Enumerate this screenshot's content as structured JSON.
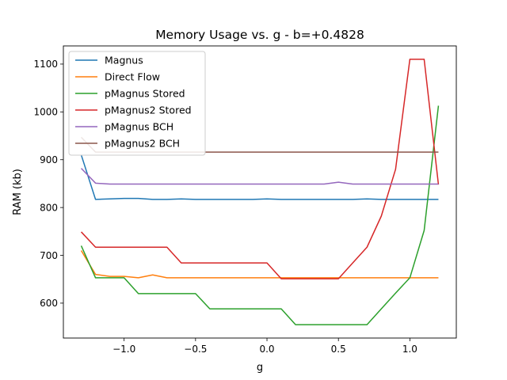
{
  "chart_data": {
    "type": "line",
    "title": "Memory Usage vs. g - b=+0.4828",
    "xlabel": "g",
    "ylabel": "RAM (kb)",
    "xlim": [
      -1.425,
      1.325
    ],
    "ylim": [
      527,
      1138
    ],
    "xticks": [
      -1.0,
      -0.5,
      0.0,
      0.5,
      1.0
    ],
    "xtick_labels": [
      "−1.0",
      "−0.5",
      "0.0",
      "0.5",
      "1.0"
    ],
    "yticks": [
      600,
      700,
      800,
      900,
      1000,
      1100
    ],
    "ytick_labels": [
      "600",
      "700",
      "800",
      "900",
      "1000",
      "1100"
    ],
    "grid": false,
    "legend_position": "top-left",
    "x": [
      -1.3,
      -1.2,
      -1.1,
      -1.0,
      -0.9,
      -0.8,
      -0.7,
      -0.6,
      -0.5,
      -0.4,
      -0.3,
      -0.2,
      -0.1,
      0.0,
      0.1,
      0.2,
      0.3,
      0.4,
      0.5,
      0.6,
      0.7,
      0.8,
      0.9,
      1.0,
      1.1,
      1.2
    ],
    "series": [
      {
        "name": "Magnus",
        "color": "#1f77b4",
        "values": [
          910,
          817,
          818,
          819,
          819,
          817,
          817,
          818,
          817,
          817,
          817,
          817,
          817,
          818,
          817,
          817,
          817,
          817,
          817,
          817,
          818,
          817,
          817,
          817,
          817,
          817
        ]
      },
      {
        "name": "Direct Flow",
        "color": "#ff7f0e",
        "values": [
          710,
          660,
          656,
          656,
          653,
          659,
          653,
          653,
          653,
          653,
          653,
          653,
          653,
          653,
          653,
          653,
          653,
          653,
          653,
          653,
          653,
          653,
          653,
          653,
          653,
          653
        ]
      },
      {
        "name": "pMagnus Stored",
        "color": "#2ca02c",
        "values": [
          720,
          653,
          653,
          653,
          620,
          620,
          620,
          620,
          620,
          588,
          588,
          588,
          588,
          588,
          588,
          555,
          555,
          555,
          555,
          555,
          555,
          588,
          621,
          653,
          752,
          1013
        ]
      },
      {
        "name": "pMagnus2 Stored",
        "color": "#d62728",
        "values": [
          749,
          717,
          717,
          717,
          717,
          717,
          717,
          684,
          684,
          684,
          684,
          684,
          684,
          684,
          651,
          651,
          651,
          651,
          651,
          684,
          717,
          782,
          880,
          1110,
          1110,
          848
        ]
      },
      {
        "name": "pMagnus BCH",
        "color": "#9467bd",
        "values": [
          882,
          851,
          849,
          849,
          849,
          849,
          849,
          849,
          849,
          849,
          849,
          849,
          849,
          849,
          849,
          849,
          849,
          849,
          853,
          849,
          849,
          849,
          849,
          849,
          849,
          849
        ]
      },
      {
        "name": "pMagnus2 BCH",
        "color": "#8c564b",
        "values": [
          947,
          916,
          916,
          916,
          916,
          916,
          916,
          916,
          916,
          916,
          916,
          916,
          916,
          916,
          916,
          916,
          916,
          916,
          916,
          916,
          916,
          916,
          916,
          916,
          916,
          916
        ]
      }
    ]
  }
}
